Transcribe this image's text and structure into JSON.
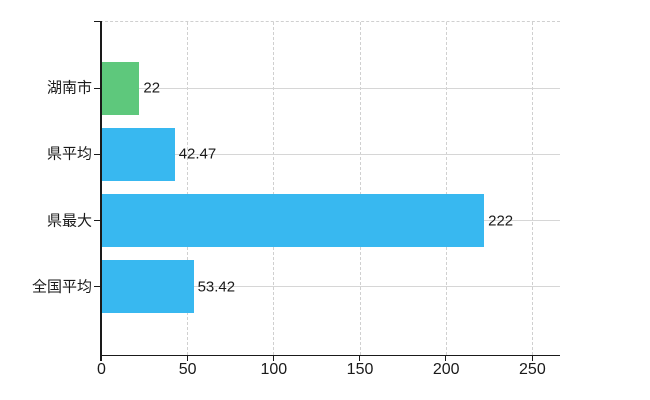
{
  "chart_data": {
    "type": "bar",
    "orientation": "horizontal",
    "title": "",
    "xlabel": "",
    "ylabel": "",
    "categories": [
      "湖南市",
      "県平均",
      "県最大",
      "全国平均"
    ],
    "values": [
      22,
      42.47,
      222,
      53.42
    ],
    "value_labels": [
      "22",
      "42.47",
      "222",
      "53.42"
    ],
    "bar_colors": [
      "#5ec87c",
      "#38b8f0",
      "#38b8f0",
      "#38b8f0"
    ],
    "x_ticks": [
      0,
      50,
      100,
      150,
      200,
      250
    ],
    "x_tick_labels": [
      "0",
      "50",
      "100",
      "150",
      "200",
      "250"
    ],
    "xlim": [
      0,
      266
    ],
    "grid": true,
    "legend_position": "none"
  },
  "colors": {
    "bar_highlight": "#5ec87c",
    "bar_default": "#38b8f0",
    "grid_horizontal": "#d6d6d6",
    "grid_vertical": "#d0d0d0",
    "axis": "#1a1a1a",
    "text": "#1a1a1a",
    "background": "#ffffff"
  }
}
